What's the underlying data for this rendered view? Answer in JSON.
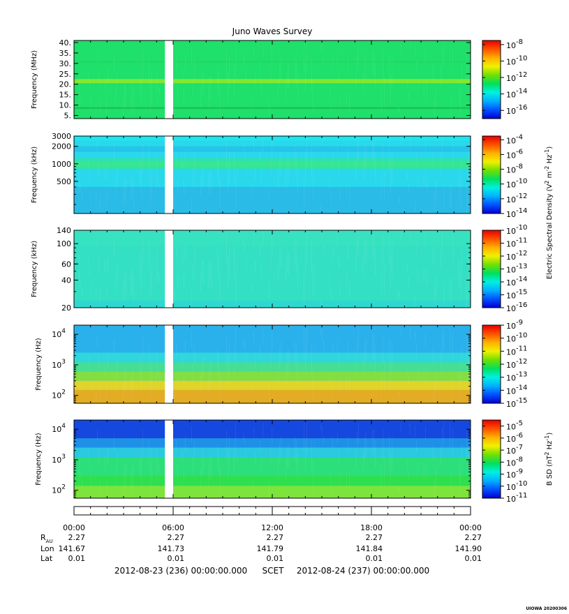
{
  "chart_data": {
    "type": "heatmap",
    "title": "Juno Waves Survey",
    "time_axis": {
      "ticks": [
        "00:00",
        "06:00",
        "12:00",
        "18:00",
        "00:00"
      ],
      "start_hours": 0,
      "end_hours": 24,
      "data_gap_hours": [
        5.5,
        6.0
      ],
      "ephemeris": [
        {
          "label": "R",
          "subscript": "AU",
          "values": [
            "2.27",
            "2.27",
            "2.27",
            "2.27",
            "2.27"
          ]
        },
        {
          "label": "Lon",
          "subscript": "",
          "values": [
            "141.67",
            "141.73",
            "141.79",
            "141.84",
            "141.90"
          ]
        },
        {
          "label": "Lat",
          "subscript": "",
          "values": [
            "0.01",
            "0.01",
            "0.01",
            "0.01",
            "0.01"
          ]
        }
      ],
      "date_line": {
        "start": "2012-08-23 (236) 00:00:00.000",
        "center": "SCET",
        "end": "2012-08-24 (237) 00:00:00.000"
      }
    },
    "panels": [
      {
        "ylabel": "Frequency (MHz)",
        "yscale": "linear",
        "ylim": [
          3.5,
          41
        ],
        "yticks": [
          {
            "value": 40,
            "label": "40."
          },
          {
            "value": 35,
            "label": "35."
          },
          {
            "value": 30,
            "label": "30."
          },
          {
            "value": 25,
            "label": "25."
          },
          {
            "value": 20,
            "label": "20."
          },
          {
            "value": 15,
            "label": "15."
          },
          {
            "value": 10,
            "label": "10."
          },
          {
            "value": 5,
            "label": "5."
          }
        ],
        "background_color": "#1ee06a",
        "bands": [
          {
            "from": 20.5,
            "to": 22.5,
            "color": "#8ee82a"
          },
          {
            "from": 8.2,
            "to": 9.0,
            "color": "#18bf52"
          },
          {
            "from": 30.5,
            "to": 31.0,
            "color": "#24d460"
          }
        ],
        "colorbar_exponent_range": [
          -17,
          -7.5
        ],
        "colorbar_ticks": [
          -8,
          -10,
          -12,
          -14,
          -16
        ]
      },
      {
        "ylabel": "Frequency (kHz)",
        "yscale": "log",
        "ylim": [
          140,
          3000
        ],
        "yticks": [
          {
            "value": 3000,
            "label": "3000"
          },
          {
            "value": 2000,
            "label": "2000"
          },
          {
            "value": 1000,
            "label": "1000"
          },
          {
            "value": 500,
            "label": "500"
          }
        ],
        "background_color": "#2ad8ec",
        "bands": [
          {
            "from": 2500,
            "to": 3000,
            "color": "#1fe6f0"
          },
          {
            "from": 1600,
            "to": 2000,
            "color": "#26c2e8"
          },
          {
            "from": 800,
            "to": 1250,
            "color": "#2ee3a8"
          },
          {
            "from": 880,
            "to": 1100,
            "color": "#3ae690"
          },
          {
            "from": 140,
            "to": 400,
            "color": "#2ab8e6"
          }
        ],
        "colorbar_exponent_range": [
          -14,
          -3.5
        ],
        "colorbar_ticks": [
          -4,
          -6,
          -8,
          -10,
          -12,
          -14
        ]
      },
      {
        "ylabel": "Frequency (kHz)",
        "yscale": "log",
        "ylim": [
          20,
          140
        ],
        "yticks": [
          {
            "value": 140,
            "label": "140"
          },
          {
            "value": 100,
            "label": "100"
          },
          {
            "value": 60,
            "label": "60"
          },
          {
            "value": 40,
            "label": "40"
          },
          {
            "value": 20,
            "label": "20"
          }
        ],
        "background_color": "#34e0c4",
        "bands": [
          {
            "from": 20,
            "to": 24,
            "color": "#2fd7cf"
          },
          {
            "from": 95,
            "to": 140,
            "color": "#37e2c0"
          }
        ],
        "colorbar_exponent_range": [
          -16,
          -10
        ],
        "colorbar_ticks": [
          -10,
          -11,
          -12,
          -13,
          -14,
          -15,
          -16
        ]
      },
      {
        "ylabel": "Frequency (Hz)",
        "yscale": "log",
        "ylim": [
          55,
          20000
        ],
        "yticks": [
          {
            "value": 10000,
            "label": "10",
            "exponent": "4"
          },
          {
            "value": 1000,
            "label": "10",
            "exponent": "3"
          },
          {
            "value": 100,
            "label": "10",
            "exponent": "2"
          }
        ],
        "background_color": "#30c8f0",
        "bands": [
          {
            "from": 2500,
            "to": 20000,
            "color": "#2aaeea"
          },
          {
            "from": 1200,
            "to": 2500,
            "color": "#30d8d8"
          },
          {
            "from": 600,
            "to": 1200,
            "color": "#48e088"
          },
          {
            "from": 300,
            "to": 600,
            "color": "#8ce030"
          },
          {
            "from": 150,
            "to": 300,
            "color": "#f4d414"
          },
          {
            "from": 55,
            "to": 150,
            "color": "#f6a80e"
          }
        ],
        "colorbar_exponent_range": [
          -15,
          -9
        ],
        "colorbar_ticks": [
          -9,
          -10,
          -11,
          -12,
          -13,
          -14,
          -15
        ]
      },
      {
        "ylabel": "Frequency (Hz)",
        "yscale": "log",
        "ylim": [
          55,
          20000
        ],
        "yticks": [
          {
            "value": 10000,
            "label": "10",
            "exponent": "4"
          },
          {
            "value": 1000,
            "label": "10",
            "exponent": "3"
          },
          {
            "value": 100,
            "label": "10",
            "exponent": "2"
          }
        ],
        "background_color": "#24d0d0",
        "bands": [
          {
            "from": 5000,
            "to": 20000,
            "color": "#1438e0"
          },
          {
            "from": 2500,
            "to": 5000,
            "color": "#1e88ea"
          },
          {
            "from": 1200,
            "to": 2500,
            "color": "#2cc8e0"
          },
          {
            "from": 300,
            "to": 1200,
            "color": "#2ee070"
          },
          {
            "from": 140,
            "to": 300,
            "color": "#30e040"
          },
          {
            "from": 55,
            "to": 140,
            "color": "#86e62a"
          }
        ],
        "colorbar_exponent_range": [
          -11,
          -4.5
        ],
        "colorbar_ticks": [
          -5,
          -6,
          -7,
          -8,
          -9,
          -10,
          -11
        ]
      }
    ],
    "colorbar_labels": [
      {
        "text": "Electric Spectral Density (V",
        "sup1": "2",
        "mid": " m",
        "sup2": "-2",
        "mid2": " Hz",
        "sup3": "-1",
        "end": ")"
      },
      {
        "text": "B SD (nT",
        "sup1": "2",
        "mid": " Hz",
        "sup2": "-1",
        "end": ")"
      }
    ],
    "colormap": [
      "#0000d0",
      "#0050ff",
      "#00b0ff",
      "#00f0e0",
      "#00e060",
      "#70e000",
      "#f0f000",
      "#ffb000",
      "#ff5000",
      "#e80000"
    ],
    "watermark": "UIOWA 20200306"
  }
}
